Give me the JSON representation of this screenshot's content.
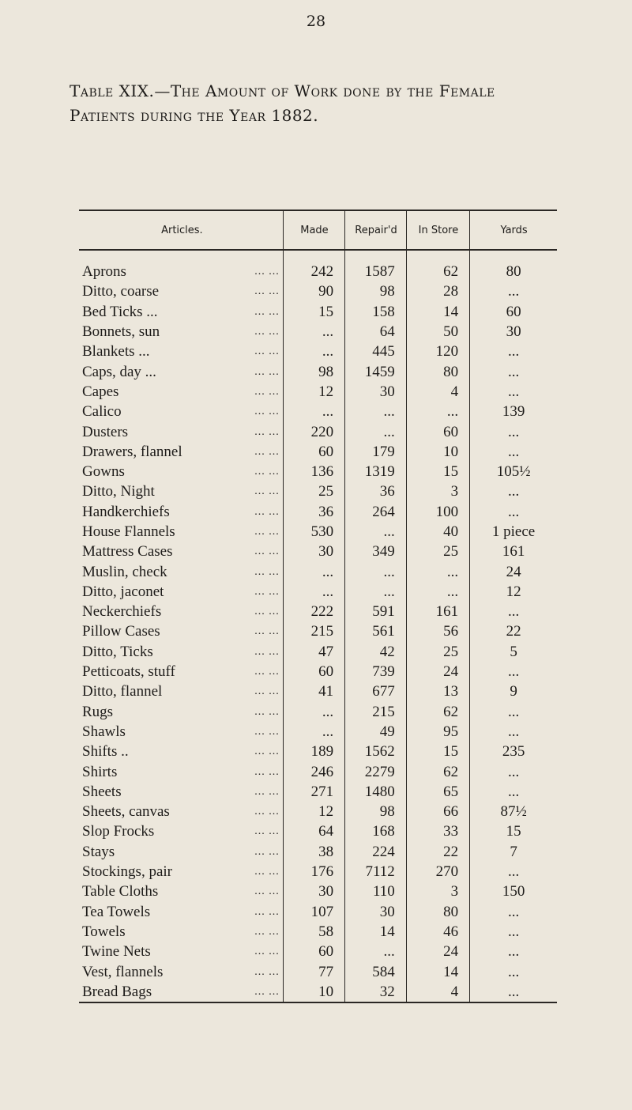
{
  "page_number": "28",
  "title_line1": "Table XIX.—The Amount of Work done by the Female",
  "title_line2": "Patients during the Year 1882.",
  "columns": [
    "Articles.",
    "Made",
    "Repair'd",
    "In Store",
    "Yards"
  ],
  "rows": [
    [
      "Aprons",
      "242",
      "1587",
      "62",
      "80"
    ],
    [
      "Ditto, coarse",
      "90",
      "98",
      "28",
      "..."
    ],
    [
      "Bed Ticks ...",
      "15",
      "158",
      "14",
      "60"
    ],
    [
      "Bonnets, sun",
      "...",
      "64",
      "50",
      "30"
    ],
    [
      "Blankets ...",
      "...",
      "445",
      "120",
      "..."
    ],
    [
      "Caps, day ...",
      "98",
      "1459",
      "80",
      "..."
    ],
    [
      "Capes",
      "12",
      "30",
      "4",
      "..."
    ],
    [
      "Calico",
      "...",
      "...",
      "...",
      "139"
    ],
    [
      "Dusters",
      "220",
      "...",
      "60",
      "..."
    ],
    [
      "Drawers, flannel",
      "60",
      "179",
      "10",
      "..."
    ],
    [
      "Gowns",
      "136",
      "1319",
      "15",
      "105½"
    ],
    [
      "Ditto, Night",
      "25",
      "36",
      "3",
      "..."
    ],
    [
      "Handkerchiefs",
      "36",
      "264",
      "100",
      "..."
    ],
    [
      "House Flannels",
      "530",
      "...",
      "40",
      "1 piece"
    ],
    [
      "Mattress Cases",
      "30",
      "349",
      "25",
      "161"
    ],
    [
      "Muslin, check",
      "...",
      "...",
      "...",
      "24"
    ],
    [
      "Ditto, jaconet",
      "...",
      "...",
      "...",
      "12"
    ],
    [
      "Neckerchiefs",
      "222",
      "591",
      "161",
      "..."
    ],
    [
      "Pillow Cases",
      "215",
      "561",
      "56",
      "22"
    ],
    [
      "Ditto, Ticks",
      "47",
      "42",
      "25",
      "5"
    ],
    [
      "Petticoats, stuff",
      "60",
      "739",
      "24",
      "..."
    ],
    [
      "Ditto, flannel",
      "41",
      "677",
      "13",
      "9"
    ],
    [
      "Rugs",
      "...",
      "215",
      "62",
      "..."
    ],
    [
      "Shawls",
      "...",
      "49",
      "95",
      "..."
    ],
    [
      "Shifts ..",
      "189",
      "1562",
      "15",
      "235"
    ],
    [
      "Shirts",
      "246",
      "2279",
      "62",
      "..."
    ],
    [
      "Sheets",
      "271",
      "1480",
      "65",
      "..."
    ],
    [
      "Sheets, canvas",
      "12",
      "98",
      "66",
      "87½"
    ],
    [
      "Slop Frocks",
      "64",
      "168",
      "33",
      "15"
    ],
    [
      "Stays",
      "38",
      "224",
      "22",
      "7"
    ],
    [
      "Stockings, pair",
      "176",
      "7112",
      "270",
      "..."
    ],
    [
      "Table Cloths",
      "30",
      "110",
      "3",
      "150"
    ],
    [
      "Tea Towels",
      "107",
      "30",
      "80",
      "..."
    ],
    [
      "Towels",
      "58",
      "14",
      "46",
      "..."
    ],
    [
      "Twine Nets",
      "60",
      "...",
      "24",
      "..."
    ],
    [
      "Vest, flannels",
      "77",
      "584",
      "14",
      "..."
    ],
    [
      "Bread Bags",
      "10",
      "32",
      "4",
      "..."
    ]
  ]
}
